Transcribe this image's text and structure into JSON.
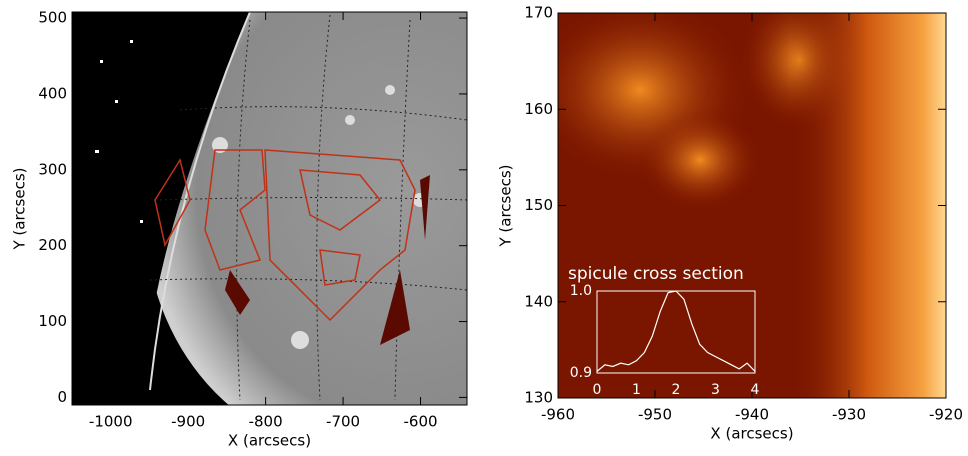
{
  "chart_data": [
    {
      "type": "image",
      "xlabel": "X (arcsecs)",
      "ylabel": "Y (arcsecs)",
      "xlim": [
        -1050,
        -540
      ],
      "xticks": [
        -1000,
        -900,
        -800,
        -700,
        -600
      ],
      "ylim": [
        -10,
        508
      ],
      "yticks": [
        0,
        100,
        200,
        300,
        400,
        500
      ]
    },
    {
      "type": "image",
      "xlabel": "X (arcsecs)",
      "ylabel": "Y (arcsecs)",
      "xlim": [
        -960,
        -920
      ],
      "xticks": [
        -960,
        -950,
        -940,
        -930,
        -920
      ],
      "ylim": [
        130,
        170
      ],
      "yticks": [
        130,
        140,
        150,
        160,
        170
      ]
    },
    {
      "type": "line",
      "title": "spicule cross section",
      "color": "#ffffff",
      "x": [
        0,
        0.2,
        0.4,
        0.6,
        0.8,
        1.0,
        1.2,
        1.4,
        1.6,
        1.8,
        2.0,
        2.2,
        2.4,
        2.6,
        2.8,
        3.0,
        3.2,
        3.4,
        3.6,
        3.8,
        4.0
      ],
      "values": [
        0.902,
        0.91,
        0.908,
        0.912,
        0.91,
        0.915,
        0.925,
        0.945,
        0.975,
        0.998,
        1.0,
        0.99,
        0.96,
        0.935,
        0.925,
        0.92,
        0.915,
        0.91,
        0.905,
        0.912,
        0.902
      ],
      "xlim": [
        0,
        4
      ],
      "xticks": [
        0,
        1,
        2,
        3,
        4
      ],
      "ylim": [
        0.9,
        1.0
      ],
      "yticks": [
        {
          "value": 0.9,
          "label": "0.9"
        },
        {
          "value": 1.0,
          "label": "1.0"
        }
      ]
    }
  ]
}
